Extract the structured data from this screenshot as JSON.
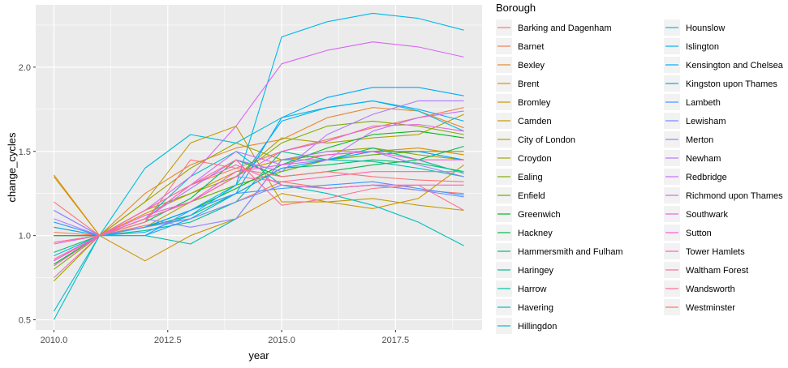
{
  "chart_data": {
    "type": "line",
    "xlabel": "year",
    "ylabel": "change_cycles",
    "xlim": [
      2009.6,
      2019.4
    ],
    "ylim": [
      0.44,
      2.37
    ],
    "x_ticks": [
      2010,
      2012.5,
      2015,
      2017.5
    ],
    "x_tick_labels": [
      "2010.0",
      "2012.5",
      "2015.0",
      "2017.5"
    ],
    "y_ticks": [
      0.5,
      1.0,
      1.5,
      2.0
    ],
    "y_tick_labels": [
      "0.5",
      "1.0",
      "1.5",
      "2.0"
    ],
    "grid": true,
    "legend": {
      "title": "Borough",
      "placement": "right",
      "columns": 2
    },
    "x": [
      2010,
      2011,
      2012,
      2013,
      2014,
      2015,
      2016,
      2017,
      2018,
      2019
    ],
    "series": [
      {
        "name": "Barking and Dagenham",
        "color": "#F8766D",
        "values": [
          0.96,
          1.0,
          1.06,
          1.1,
          1.2,
          1.32,
          1.28,
          1.3,
          1.27,
          1.25
        ]
      },
      {
        "name": "Barnet",
        "color": "#F27D53",
        "values": [
          1.02,
          1.0,
          1.1,
          1.3,
          1.4,
          1.5,
          1.57,
          1.64,
          1.7,
          1.76
        ]
      },
      {
        "name": "Bexley",
        "color": "#E98732",
        "values": [
          1.05,
          1.0,
          1.25,
          1.42,
          1.52,
          1.57,
          1.7,
          1.76,
          1.74,
          1.64
        ]
      },
      {
        "name": "Brent",
        "color": "#DD8D00",
        "values": [
          1.36,
          1.0,
          1.13,
          1.25,
          1.38,
          1.45,
          1.48,
          1.5,
          1.52,
          1.48
        ]
      },
      {
        "name": "Bromley",
        "color": "#CF9400",
        "values": [
          1.35,
          1.0,
          0.85,
          1.0,
          1.1,
          1.25,
          1.2,
          1.16,
          1.22,
          1.42
        ]
      },
      {
        "name": "Camden",
        "color": "#C09B00",
        "values": [
          1.0,
          1.0,
          1.2,
          1.55,
          1.65,
          1.2,
          1.2,
          1.22,
          1.18,
          1.15
        ]
      },
      {
        "name": "City of London",
        "color": "#AEA200",
        "values": [
          1.0,
          1.0,
          1.05,
          1.2,
          1.35,
          1.58,
          1.55,
          1.58,
          1.6,
          1.72
        ]
      },
      {
        "name": "Croydon",
        "color": "#9AA800",
        "values": [
          0.73,
          1.0,
          1.2,
          1.4,
          1.55,
          1.45,
          1.5,
          1.52,
          1.48,
          1.45
        ]
      },
      {
        "name": "Ealing",
        "color": "#81AD00",
        "values": [
          0.8,
          1.0,
          1.15,
          1.25,
          1.35,
          1.55,
          1.65,
          1.68,
          1.65,
          1.6
        ]
      },
      {
        "name": "Enfield",
        "color": "#5EB300",
        "values": [
          0.85,
          1.0,
          1.1,
          1.2,
          1.3,
          1.38,
          1.45,
          1.48,
          1.5,
          1.5
        ]
      },
      {
        "name": "Greenwich",
        "color": "#00B81F",
        "values": [
          0.83,
          1.0,
          1.05,
          1.15,
          1.28,
          1.42,
          1.52,
          1.6,
          1.62,
          1.58
        ]
      },
      {
        "name": "Hackney",
        "color": "#00BB4E",
        "values": [
          1.0,
          1.0,
          1.08,
          1.22,
          1.45,
          1.35,
          1.38,
          1.42,
          1.45,
          1.53
        ]
      },
      {
        "name": "Hammersmith and Fulham",
        "color": "#00BE70",
        "values": [
          0.9,
          1.0,
          1.05,
          1.12,
          1.25,
          1.4,
          1.42,
          1.45,
          1.43,
          1.38
        ]
      },
      {
        "name": "Haringey",
        "color": "#00C08D",
        "values": [
          1.0,
          1.0,
          1.03,
          1.08,
          1.2,
          1.5,
          1.45,
          1.52,
          1.45,
          1.37
        ]
      },
      {
        "name": "Harrow",
        "color": "#00C0A7",
        "values": [
          1.0,
          1.0,
          1.0,
          0.95,
          1.1,
          1.45,
          1.45,
          1.44,
          1.4,
          1.35
        ]
      },
      {
        "name": "Havering",
        "color": "#00BFBF",
        "values": [
          0.5,
          1.0,
          1.1,
          1.35,
          1.5,
          1.3,
          1.25,
          1.18,
          1.08,
          0.94
        ]
      },
      {
        "name": "Hillingdon",
        "color": "#00BCD5",
        "values": [
          0.55,
          1.0,
          1.4,
          1.6,
          1.55,
          1.7,
          1.76,
          1.8,
          1.74,
          1.62
        ]
      },
      {
        "name": "Hounslow",
        "color": "#00B8E7",
        "values": [
          0.88,
          1.0,
          1.05,
          1.15,
          1.3,
          2.18,
          2.27,
          2.32,
          2.29,
          2.22
        ]
      },
      {
        "name": "Islington",
        "color": "#00B2F6",
        "values": [
          1.05,
          1.0,
          1.02,
          1.12,
          1.3,
          1.68,
          1.76,
          1.8,
          1.75,
          1.68
        ]
      },
      {
        "name": "Kensington and Chelsea",
        "color": "#00ABFD",
        "values": [
          1.08,
          1.0,
          1.0,
          1.1,
          1.25,
          1.7,
          1.82,
          1.88,
          1.88,
          1.83
        ]
      },
      {
        "name": "Kingston upon Thames",
        "color": "#00A2FF",
        "values": [
          1.0,
          1.0,
          1.05,
          1.15,
          1.25,
          1.4,
          1.45,
          1.5,
          1.5,
          1.45
        ]
      },
      {
        "name": "Lambeth",
        "color": "#3C99FF",
        "values": [
          1.08,
          1.0,
          1.0,
          1.15,
          1.25,
          1.28,
          1.3,
          1.32,
          1.28,
          1.24
        ]
      },
      {
        "name": "Lewisham",
        "color": "#6F8FFF",
        "values": [
          1.15,
          1.0,
          1.05,
          1.1,
          1.2,
          1.3,
          1.28,
          1.3,
          1.27,
          1.23
        ]
      },
      {
        "name": "Merton",
        "color": "#9384FF",
        "values": [
          1.15,
          1.0,
          1.1,
          1.05,
          1.1,
          1.45,
          1.5,
          1.5,
          1.42,
          1.35
        ]
      },
      {
        "name": "Newham",
        "color": "#AF79FF",
        "values": [
          1.1,
          1.0,
          1.1,
          1.28,
          1.45,
          1.38,
          1.6,
          1.72,
          1.8,
          1.8
        ]
      },
      {
        "name": "Redbridge",
        "color": "#C66FFE",
        "values": [
          0.85,
          1.0,
          1.15,
          1.3,
          1.5,
          1.42,
          1.45,
          1.62,
          1.7,
          1.74
        ]
      },
      {
        "name": "Richmond upon Thames",
        "color": "#D866F2",
        "values": [
          0.95,
          1.0,
          1.15,
          1.35,
          1.65,
          2.02,
          2.1,
          2.15,
          2.12,
          2.06
        ]
      },
      {
        "name": "Southwark",
        "color": "#E762E5",
        "values": [
          0.85,
          1.0,
          1.1,
          1.2,
          1.35,
          1.5,
          1.56,
          1.65,
          1.66,
          1.62
        ]
      },
      {
        "name": "Sutton",
        "color": "#F15FD4",
        "values": [
          0.82,
          1.0,
          1.12,
          1.2,
          1.38,
          1.42,
          1.48,
          1.5,
          1.45,
          1.45
        ]
      },
      {
        "name": "Tower Hamlets",
        "color": "#F963BF",
        "values": [
          0.75,
          1.0,
          1.1,
          1.3,
          1.42,
          1.3,
          1.28,
          1.3,
          1.3,
          1.3
        ]
      },
      {
        "name": "Waltham Forest",
        "color": "#FD69A8",
        "values": [
          0.86,
          1.0,
          1.1,
          1.2,
          1.35,
          1.32,
          1.35,
          1.38,
          1.38,
          1.38
        ]
      },
      {
        "name": "Wandsworth",
        "color": "#FE6F90",
        "values": [
          0.96,
          1.0,
          1.15,
          1.3,
          1.45,
          1.18,
          1.22,
          1.28,
          1.3,
          1.15
        ]
      },
      {
        "name": "Westminster",
        "color": "#FC7477",
        "values": [
          1.2,
          1.0,
          1.08,
          1.45,
          1.4,
          1.35,
          1.38,
          1.35,
          1.33,
          1.32
        ]
      }
    ]
  }
}
